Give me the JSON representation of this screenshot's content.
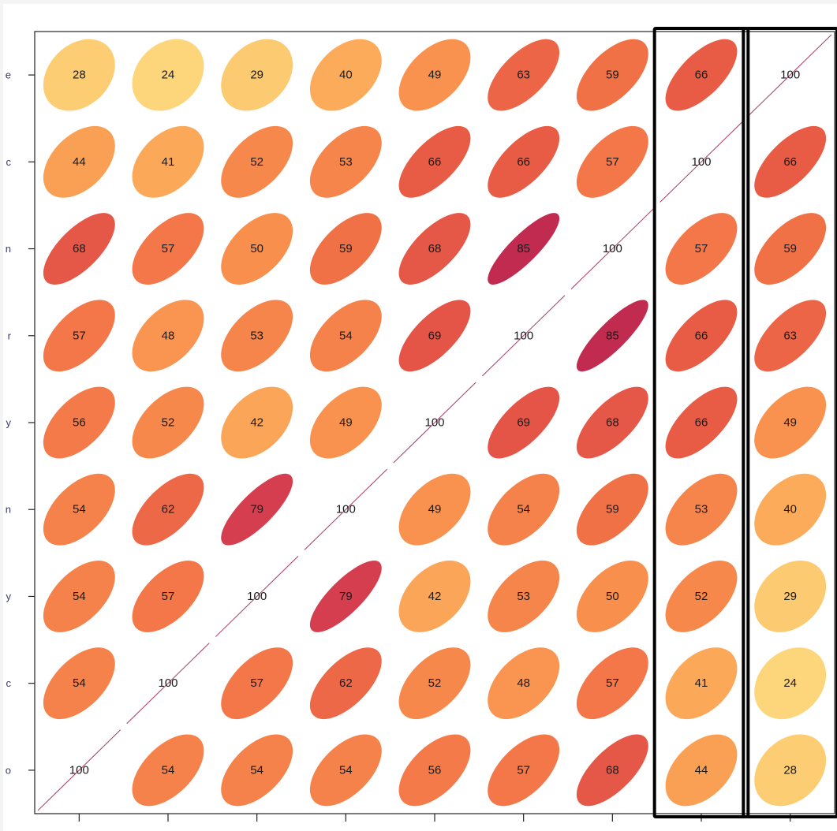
{
  "chart_data": {
    "type": "heatmap",
    "subtype": "correlation-ellipse-matrix",
    "size": 9,
    "title": "",
    "xlabel": "",
    "ylabel": "",
    "row_labels_visible_fragments": [
      "e",
      "c",
      "n",
      "r",
      "y",
      "n",
      "y",
      "c",
      "o"
    ],
    "value_range": [
      0,
      100
    ],
    "diagonal_style": "line",
    "highlighted_columns": [
      7,
      8
    ],
    "values": [
      [
        100,
        54,
        54,
        54,
        56,
        57,
        68,
        44,
        28
      ],
      [
        54,
        100,
        57,
        62,
        52,
        48,
        57,
        41,
        24
      ],
      [
        54,
        57,
        100,
        79,
        42,
        53,
        50,
        52,
        29
      ],
      [
        54,
        62,
        79,
        100,
        49,
        54,
        59,
        53,
        40
      ],
      [
        56,
        52,
        42,
        49,
        100,
        69,
        68,
        66,
        49
      ],
      [
        57,
        48,
        53,
        54,
        69,
        100,
        85,
        66,
        63
      ],
      [
        68,
        57,
        50,
        59,
        68,
        85,
        100,
        57,
        59
      ],
      [
        44,
        41,
        52,
        53,
        66,
        66,
        57,
        100,
        66
      ],
      [
        28,
        24,
        29,
        40,
        49,
        63,
        59,
        66,
        100
      ]
    ],
    "color_scale": [
      {
        "value": 25,
        "color": "#fdd57a"
      },
      {
        "value": 40,
        "color": "#fbab5a"
      },
      {
        "value": 50,
        "color": "#f88f4d"
      },
      {
        "value": 58,
        "color": "#f27447"
      },
      {
        "value": 66,
        "color": "#e85c45"
      },
      {
        "value": 79,
        "color": "#d53e4f"
      },
      {
        "value": 85,
        "color": "#c22b50"
      }
    ],
    "diagonal_color": "#a83a6a",
    "highlight_color": "#000000"
  }
}
